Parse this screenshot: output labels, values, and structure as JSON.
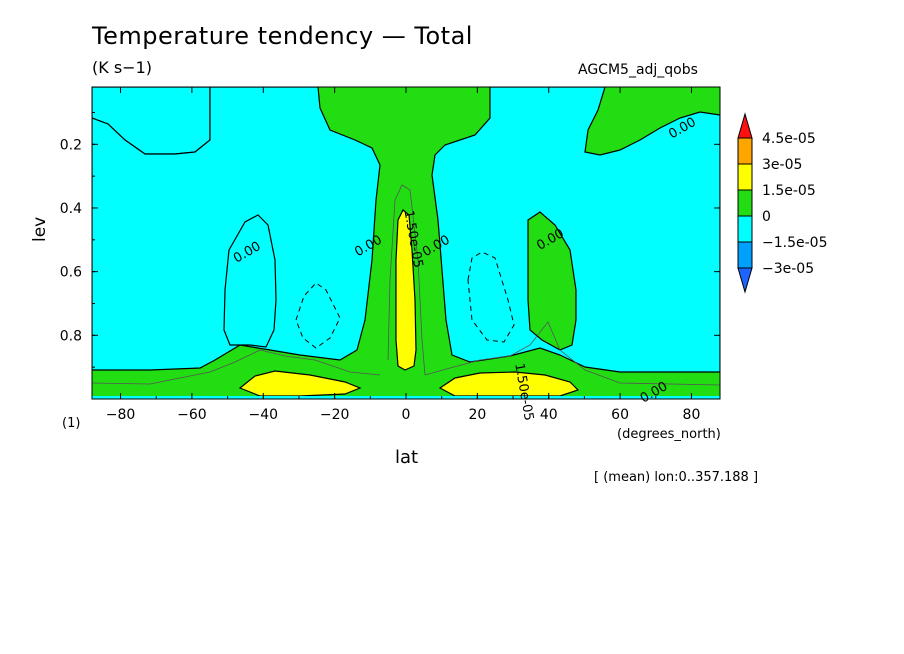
{
  "header": {
    "title": "Temperature tendency — Total",
    "units": "(K s−1)",
    "dataset": "AGCM5_adj_qobs"
  },
  "footer": {
    "x_units": "(degrees_north)",
    "y_level_note": "(1)",
    "note": "[ (mean) lon:0..357.188 ]"
  },
  "chart_data": {
    "type": "heatmap",
    "title": "Temperature tendency — Total",
    "subtitle": "(K s−1)",
    "xlabel": "lat",
    "ylabel": "lev",
    "xlim": [
      -88,
      88
    ],
    "ylim": [
      1.0,
      0.02
    ],
    "x_ticks": [
      -80,
      -60,
      -40,
      -20,
      0,
      20,
      40,
      60,
      80
    ],
    "x_tick_labels": [
      "−80",
      "−60",
      "−40",
      "−20",
      "0",
      "20",
      "40",
      "60",
      "80"
    ],
    "y_ticks": [
      0.2,
      0.4,
      0.6,
      0.8
    ],
    "y_tick_labels": [
      "0.2",
      "0.4",
      "0.6",
      "0.8"
    ],
    "color_levels": {
      "bounds": [
        -3e-05,
        -1.5e-05,
        0,
        1.5e-05,
        3e-05,
        4.5e-05
      ],
      "labels": [
        "4.5e-05",
        "3e-05",
        "1.5e-05",
        "0",
        "−1.5e-05",
        "−3e-05"
      ],
      "colors": {
        "below_min": "#1e64ff",
        "neg_3_to_neg_1_5": "#00a0ff",
        "neg_1_5_to_0": "#00ffff",
        "zero_to_1_5": "#22dd11",
        "1_5_to_3": "#ffff00",
        "3_to_4_5": "#ffa500",
        "above_max": "#ff1010"
      }
    },
    "contour_labels": [
      {
        "text": "0.00",
        "lat": 78,
        "lev": 0.16
      },
      {
        "text": "0.00",
        "lat": -44,
        "lev": 0.55
      },
      {
        "text": "0.00",
        "lat": -10,
        "lev": 0.53
      },
      {
        "text": "1.50e-05",
        "lat": 1,
        "lev": 0.5
      },
      {
        "text": "0.00",
        "lat": 9,
        "lev": 0.53
      },
      {
        "text": "0.00",
        "lat": 41,
        "lev": 0.51
      },
      {
        "text": "1.50e-05",
        "lat": 32,
        "lev": 0.98
      },
      {
        "text": "0.00",
        "lat": 70,
        "lev": 0.99
      }
    ]
  }
}
